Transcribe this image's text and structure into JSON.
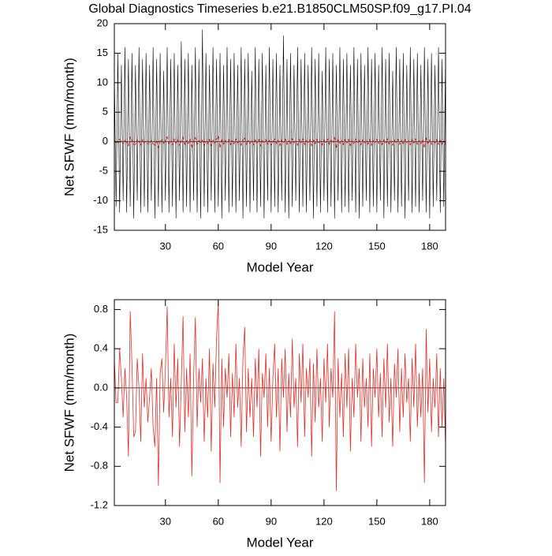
{
  "chart_data": [
    {
      "type": "line",
      "title": "Global Diagnostics Timeseries b.e21.B1850CLM50SP.f09_g17.PI.04",
      "x_label": "Model Year",
      "y_label": "Net SFWF (mm/month)",
      "xlim": [
        1,
        189
      ],
      "ylim": [
        -15,
        20
      ],
      "xticks": [
        30,
        60,
        90,
        120,
        150,
        180
      ],
      "yticks": [
        -15,
        -10,
        -5,
        0,
        5,
        10,
        15,
        20
      ],
      "x": [
        1,
        2,
        3,
        4,
        5,
        6,
        7,
        8,
        9,
        10,
        11,
        12,
        13,
        14,
        15,
        16,
        17,
        18,
        19,
        20,
        21,
        22,
        23,
        24,
        25,
        26,
        27,
        28,
        29,
        30,
        31,
        32,
        33,
        34,
        35,
        36,
        37,
        38,
        39,
        40,
        41,
        42,
        43,
        44,
        45,
        46,
        47,
        48,
        49,
        50,
        51,
        52,
        53,
        54,
        55,
        56,
        57,
        58,
        59,
        60,
        61,
        62,
        63,
        64,
        65,
        66,
        67,
        68,
        69,
        70,
        71,
        72,
        73,
        74,
        75,
        76,
        77,
        78,
        79,
        80,
        81,
        82,
        83,
        84,
        85,
        86,
        87,
        88,
        89,
        90,
        91,
        92,
        93,
        94,
        95,
        96,
        97,
        98,
        99,
        100,
        101,
        102,
        103,
        104,
        105,
        106,
        107,
        108,
        109,
        110,
        111,
        112,
        113,
        114,
        115,
        116,
        117,
        118,
        119,
        120,
        121,
        122,
        123,
        124,
        125,
        126,
        127,
        128,
        129,
        130,
        131,
        132,
        133,
        134,
        135,
        136,
        137,
        138,
        139,
        140,
        141,
        142,
        143,
        144,
        145,
        146,
        147,
        148,
        149,
        150,
        151,
        152,
        153,
        154,
        155,
        156,
        157,
        158,
        159,
        160,
        161,
        162,
        163,
        164,
        165,
        166,
        167,
        168,
        169,
        170,
        171,
        172,
        173,
        174,
        175,
        176,
        177,
        178,
        179,
        180,
        181,
        182,
        183,
        184,
        185,
        186,
        187,
        188,
        189
      ],
      "series": [
        {
          "color": "#000000",
          "values": [
            12,
            -11,
            15,
            -12,
            13,
            -10,
            16,
            -12,
            14,
            -11,
            15,
            -13,
            13,
            -10,
            16,
            -12,
            14,
            -11,
            15,
            -12,
            13,
            -10,
            16,
            -13,
            14,
            -11,
            15,
            -12,
            12,
            -10,
            16,
            -12,
            14,
            -11,
            15,
            -13,
            13,
            -10,
            17,
            -12,
            14,
            -11,
            15,
            -12,
            13,
            -10,
            16,
            -12,
            14,
            -13,
            19,
            -11,
            15,
            -12,
            13,
            -10,
            16,
            -12,
            14,
            -11,
            15,
            -13,
            13,
            -10,
            16,
            -12,
            14,
            -11,
            15,
            -12,
            13,
            -10,
            16,
            -13,
            14,
            -11,
            15,
            -12,
            12,
            -10,
            16,
            -12,
            14,
            -11,
            15,
            -13,
            13,
            -10,
            16,
            -12,
            14,
            -11,
            15,
            -12,
            13,
            -10,
            18,
            -12,
            14,
            -13,
            15,
            -11,
            13,
            -10,
            16,
            -12,
            14,
            -11,
            15,
            -12,
            13,
            -10,
            16,
            -13,
            14,
            -11,
            15,
            -12,
            12,
            -10,
            16,
            -12,
            14,
            -11,
            15,
            -13,
            13,
            -10,
            16,
            -12,
            14,
            -11,
            15,
            -12,
            13,
            -10,
            16,
            -12,
            14,
            -13,
            15,
            -11,
            13,
            -10,
            16,
            -12,
            14,
            -11,
            15,
            -12,
            13,
            -10,
            16,
            -13,
            14,
            -11,
            15,
            -12,
            12,
            -10,
            16,
            -12,
            14,
            -11,
            15,
            -13,
            13,
            -10,
            16,
            -12,
            14,
            -11,
            15,
            -12,
            13,
            -10,
            16,
            -12,
            14,
            -13,
            15,
            -11,
            13,
            -10,
            16,
            -12,
            14,
            -11,
            15
          ]
        },
        {
          "color": "#e0302a",
          "values": [
            0.3,
            -0.15,
            -0.15,
            0.4,
            0.1,
            -0.3,
            0.2,
            -0.1,
            -0.7,
            0.78,
            0.25,
            -0.5,
            -0.45,
            0.3,
            0.0,
            -0.55,
            0.35,
            -0.2,
            0.1,
            -0.35,
            -0.1,
            0.2,
            -0.4,
            -0.6,
            0.1,
            -1.0,
            0.15,
            0.3,
            -0.25,
            0.2,
            0.83,
            -0.3,
            0.1,
            -0.5,
            0.45,
            -0.2,
            0.3,
            -0.6,
            0.05,
            0.73,
            -0.45,
            0.2,
            -0.3,
            0.35,
            -0.9,
            0.1,
            0.72,
            -0.4,
            0.2,
            -0.15,
            0.3,
            -0.55,
            0.1,
            -0.3,
            0.4,
            -0.65,
            0.25,
            -0.2,
            0.5,
            0.88,
            -0.97,
            0.3,
            -0.4,
            0.2,
            -0.1,
            0.35,
            -0.5,
            0.15,
            -0.3,
            0.45,
            -0.2,
            0.1,
            -0.6,
            0.3,
            0.62,
            -0.45,
            0.2,
            -0.3,
            0.1,
            -0.5,
            0.3,
            -0.2,
            0.4,
            -0.7,
            0.15,
            -0.1,
            0.35,
            -0.4,
            0.2,
            -0.55,
            0.1,
            0.45,
            -0.3,
            0.2,
            -0.65,
            0.3,
            -0.1,
            0.4,
            -0.45,
            0.15,
            -0.3,
            0.5,
            -0.2,
            0.1,
            -0.6,
            0.35,
            -0.15,
            0.45,
            -0.5,
            0.2,
            -0.1,
            0.3,
            -0.7,
            0.25,
            -0.35,
            0.4,
            -0.2,
            0.1,
            -0.55,
            0.3,
            -0.15,
            0.45,
            -0.4,
            0.2,
            -0.1,
            0.78,
            -1.05,
            0.3,
            -0.3,
            0.15,
            -0.5,
            0.35,
            -0.2,
            0.4,
            -0.65,
            0.1,
            -0.3,
            0.45,
            -0.1,
            0.2,
            -0.55,
            0.3,
            -0.2,
            0.1,
            -0.4,
            0.35,
            -0.6,
            0.2,
            -0.1,
            0.4,
            -0.3,
            0.15,
            -0.5,
            0.3,
            -0.2,
            0.45,
            -0.35,
            0.1,
            -0.6,
            0.25,
            -0.1,
            0.4,
            -0.45,
            0.2,
            -0.3,
            0.35,
            -0.15,
            0.1,
            -0.55,
            0.3,
            -0.2,
            0.45,
            -0.4,
            0.15,
            -0.3,
            0.2,
            -0.97,
            0.6,
            -0.25,
            0.3,
            -0.45,
            0.1,
            -0.2,
            0.35,
            -0.5,
            0.2,
            -0.4,
            0.1,
            -0.6
          ]
        }
      ]
    },
    {
      "type": "line",
      "x_label": "Model Year",
      "y_label": "Net SFWF (mm/month)",
      "xlim": [
        1,
        189
      ],
      "ylim": [
        -1.2,
        0.9
      ],
      "xticks": [
        30,
        60,
        90,
        120,
        150,
        180
      ],
      "yticks": [
        -1.2,
        -0.8,
        -0.4,
        {
          "value": 0,
          "label": "0.0"
        },
        0.4,
        0.8
      ],
      "x": [
        1,
        2,
        3,
        4,
        5,
        6,
        7,
        8,
        9,
        10,
        11,
        12,
        13,
        14,
        15,
        16,
        17,
        18,
        19,
        20,
        21,
        22,
        23,
        24,
        25,
        26,
        27,
        28,
        29,
        30,
        31,
        32,
        33,
        34,
        35,
        36,
        37,
        38,
        39,
        40,
        41,
        42,
        43,
        44,
        45,
        46,
        47,
        48,
        49,
        50,
        51,
        52,
        53,
        54,
        55,
        56,
        57,
        58,
        59,
        60,
        61,
        62,
        63,
        64,
        65,
        66,
        67,
        68,
        69,
        70,
        71,
        72,
        73,
        74,
        75,
        76,
        77,
        78,
        79,
        80,
        81,
        82,
        83,
        84,
        85,
        86,
        87,
        88,
        89,
        90,
        91,
        92,
        93,
        94,
        95,
        96,
        97,
        98,
        99,
        100,
        101,
        102,
        103,
        104,
        105,
        106,
        107,
        108,
        109,
        110,
        111,
        112,
        113,
        114,
        115,
        116,
        117,
        118,
        119,
        120,
        121,
        122,
        123,
        124,
        125,
        126,
        127,
        128,
        129,
        130,
        131,
        132,
        133,
        134,
        135,
        136,
        137,
        138,
        139,
        140,
        141,
        142,
        143,
        144,
        145,
        146,
        147,
        148,
        149,
        150,
        151,
        152,
        153,
        154,
        155,
        156,
        157,
        158,
        159,
        160,
        161,
        162,
        163,
        164,
        165,
        166,
        167,
        168,
        169,
        170,
        171,
        172,
        173,
        174,
        175,
        176,
        177,
        178,
        179,
        180,
        181,
        182,
        183,
        184,
        185,
        186,
        187,
        188,
        189
      ],
      "series": [
        {
          "color": "#e0302a",
          "values": [
            0.3,
            -0.15,
            -0.15,
            0.4,
            0.1,
            -0.3,
            0.2,
            -0.1,
            -0.7,
            0.78,
            0.25,
            -0.5,
            -0.45,
            0.3,
            0.0,
            -0.55,
            0.35,
            -0.2,
            0.1,
            -0.35,
            -0.1,
            0.2,
            -0.4,
            -0.6,
            0.1,
            -1.0,
            0.15,
            0.3,
            -0.25,
            0.2,
            0.83,
            -0.3,
            0.1,
            -0.5,
            0.45,
            -0.2,
            0.3,
            -0.6,
            0.05,
            0.73,
            -0.45,
            0.2,
            -0.3,
            0.35,
            -0.9,
            0.1,
            0.72,
            -0.4,
            0.2,
            -0.15,
            0.3,
            -0.55,
            0.1,
            -0.3,
            0.4,
            -0.65,
            0.25,
            -0.2,
            0.5,
            0.88,
            -0.97,
            0.3,
            -0.4,
            0.2,
            -0.1,
            0.35,
            -0.5,
            0.15,
            -0.3,
            0.45,
            -0.2,
            0.1,
            -0.6,
            0.3,
            0.62,
            -0.45,
            0.2,
            -0.3,
            0.1,
            -0.5,
            0.3,
            -0.2,
            0.4,
            -0.7,
            0.15,
            -0.1,
            0.35,
            -0.4,
            0.2,
            -0.55,
            0.1,
            0.45,
            -0.3,
            0.2,
            -0.65,
            0.3,
            -0.1,
            0.4,
            -0.45,
            0.15,
            -0.3,
            0.5,
            -0.2,
            0.1,
            -0.6,
            0.35,
            -0.15,
            0.45,
            -0.5,
            0.2,
            -0.1,
            0.3,
            -0.7,
            0.25,
            -0.35,
            0.4,
            -0.2,
            0.1,
            -0.55,
            0.3,
            -0.15,
            0.45,
            -0.4,
            0.2,
            -0.1,
            0.78,
            -1.05,
            0.3,
            -0.3,
            0.15,
            -0.5,
            0.35,
            -0.2,
            0.4,
            -0.65,
            0.1,
            -0.3,
            0.45,
            -0.1,
            0.2,
            -0.55,
            0.3,
            -0.2,
            0.1,
            -0.4,
            0.35,
            -0.6,
            0.2,
            -0.1,
            0.4,
            -0.3,
            0.15,
            -0.5,
            0.3,
            -0.2,
            0.45,
            -0.35,
            0.1,
            -0.6,
            0.25,
            -0.1,
            0.4,
            -0.45,
            0.2,
            -0.3,
            0.35,
            -0.15,
            0.1,
            -0.55,
            0.3,
            -0.2,
            0.45,
            -0.4,
            0.15,
            -0.3,
            0.2,
            -0.97,
            0.6,
            -0.25,
            0.3,
            -0.45,
            0.1,
            -0.2,
            0.35,
            -0.5,
            0.2,
            -0.4,
            0.1,
            -0.6
          ]
        }
      ]
    }
  ]
}
